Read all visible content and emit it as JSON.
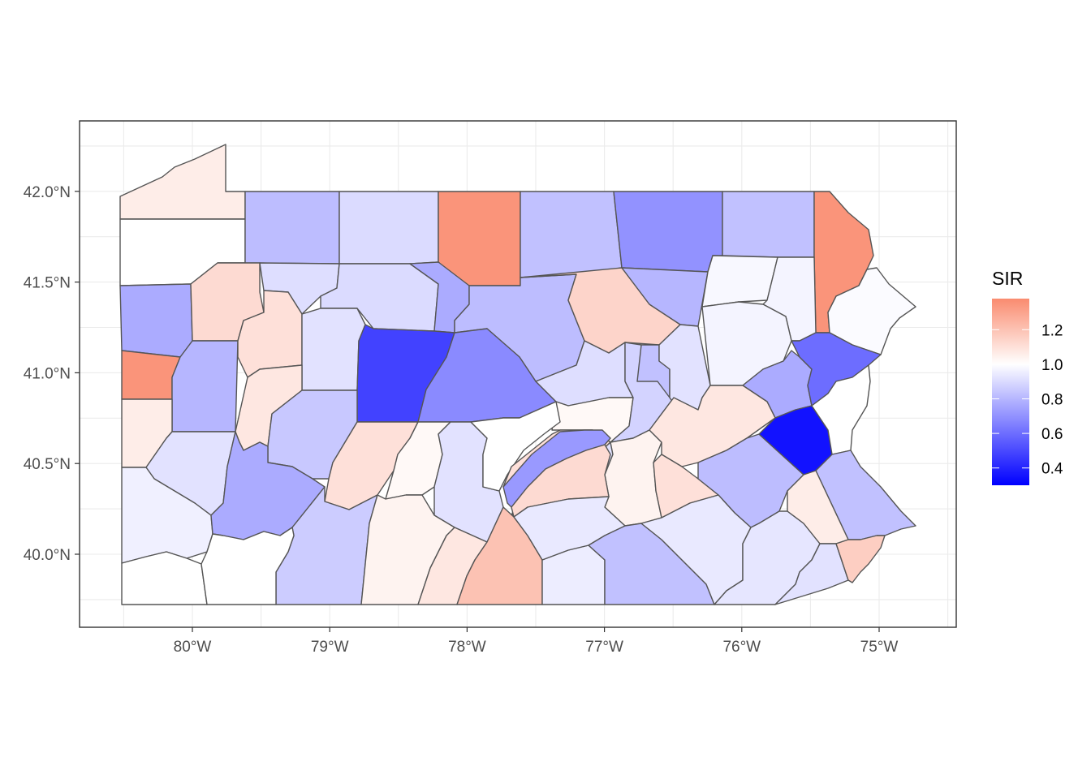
{
  "map": {
    "lon_range": [
      -80.85,
      -74.45
    ],
    "lat_range": [
      39.6,
      42.35
    ],
    "x_ticks": [
      {
        "value": -80,
        "label": "80°W"
      },
      {
        "value": -79,
        "label": "79°W"
      },
      {
        "value": -78,
        "label": "78°W"
      },
      {
        "value": -77,
        "label": "77°W"
      },
      {
        "value": -76,
        "label": "76°W"
      },
      {
        "value": -75,
        "label": "75°W"
      }
    ],
    "y_ticks": [
      {
        "value": 40.0,
        "label": "40.0°N"
      },
      {
        "value": 40.5,
        "label": "40.5°N"
      },
      {
        "value": 41.0,
        "label": "41.0°N"
      },
      {
        "value": 41.5,
        "label": "41.5°N"
      },
      {
        "value": 42.0,
        "label": "42.0°N"
      }
    ],
    "grid": true
  },
  "legend": {
    "title": "SIR",
    "placement": "right",
    "scale": {
      "low": 0.3,
      "mid": 1.0,
      "high": 1.38,
      "low_color": "#0000ff",
      "mid_color": "#ffffff",
      "high_color": "#fa8b6f"
    },
    "ticks": [
      {
        "value": 1.2,
        "label": "1.2"
      },
      {
        "value": 1.0,
        "label": "1.0"
      },
      {
        "value": 0.8,
        "label": "0.8"
      },
      {
        "value": 0.6,
        "label": "0.6"
      },
      {
        "value": 0.4,
        "label": "0.4"
      }
    ]
  },
  "counties": [
    {
      "sir": 1.06
    },
    {
      "sir": 1.0
    },
    {
      "sir": 0.82
    },
    {
      "sir": 0.9
    },
    {
      "sir": 1.35
    },
    {
      "sir": 0.83
    },
    {
      "sir": 0.7
    },
    {
      "sir": 0.83
    },
    {
      "sir": 1.35
    },
    {
      "sir": 0.77
    },
    {
      "sir": 1.12
    },
    {
      "sir": 0.91
    },
    {
      "sir": 0.9
    },
    {
      "sir": 0.77
    },
    {
      "sir": 0.82
    },
    {
      "sir": 1.14
    },
    {
      "sir": 0.8
    },
    {
      "sir": 0.98
    },
    {
      "sir": 0.97
    },
    {
      "sir": 0.99
    },
    {
      "sir": 1.35
    },
    {
      "sir": 0.8
    },
    {
      "sir": 1.1
    },
    {
      "sir": 0.92
    },
    {
      "sir": 0.48
    },
    {
      "sir": 0.68
    },
    {
      "sir": 0.91
    },
    {
      "sir": 1.02
    },
    {
      "sir": 0.88
    },
    {
      "sir": 0.83
    },
    {
      "sir": 0.92
    },
    {
      "sir": 0.97
    },
    {
      "sir": 0.77
    },
    {
      "sir": 0.6
    },
    {
      "sir": 1.06
    },
    {
      "sir": 0.92
    },
    {
      "sir": 1.08
    },
    {
      "sir": 0.85
    },
    {
      "sir": 1.1
    },
    {
      "sir": 1.02
    },
    {
      "sir": 0.92
    },
    {
      "sir": 1.0
    },
    {
      "sir": 1.1
    },
    {
      "sir": 0.92
    },
    {
      "sir": 1.04
    },
    {
      "sir": 1.08
    },
    {
      "sir": 1.1
    },
    {
      "sir": 0.82
    },
    {
      "sir": 0.35
    },
    {
      "sir": 1.0
    },
    {
      "sir": 0.72
    },
    {
      "sir": 1.12
    },
    {
      "sir": 0.83
    },
    {
      "sir": 0.96
    },
    {
      "sir": 0.77
    },
    {
      "sir": 0.86
    },
    {
      "sir": 1.04
    },
    {
      "sir": 1.08
    },
    {
      "sir": 1.2
    },
    {
      "sir": 0.95
    },
    {
      "sir": 0.94
    },
    {
      "sir": 0.83
    },
    {
      "sir": 0.94
    },
    {
      "sir": 0.93
    },
    {
      "sir": 1.06
    },
    {
      "sir": 0.92
    },
    {
      "sir": 1.16
    }
  ]
}
